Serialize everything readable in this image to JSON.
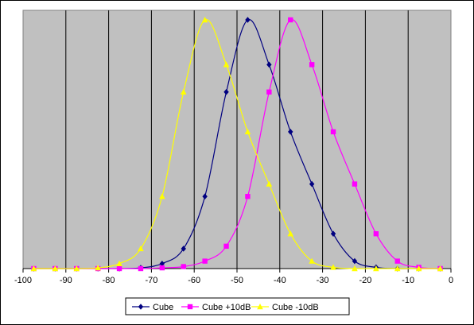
{
  "chart_data": {
    "type": "line",
    "title": "",
    "xlabel": "",
    "ylabel": "",
    "xlim": [
      -100,
      0
    ],
    "ylim": [
      0,
      1.0
    ],
    "x_ticks": [
      -100,
      -90,
      -80,
      -70,
      -60,
      -50,
      -40,
      -30,
      -20,
      -10,
      0
    ],
    "x_tick_labels": [
      "-100",
      "-90",
      "-80",
      "-70",
      "-60",
      "-50",
      "-40",
      "-30",
      "-20",
      "-10",
      "0"
    ],
    "grid": "vertical",
    "plot_background": "#c0c0c0",
    "legend": "bottom",
    "series": [
      {
        "name": "Cube",
        "color": "#000080",
        "marker": "diamond",
        "x": [
          -97.5,
          -92.5,
          -87.5,
          -82.5,
          -77.5,
          -72.5,
          -67.5,
          -62.5,
          -57.5,
          -52.5,
          -47.5,
          -42.5,
          -37.5,
          -32.5,
          -27.5,
          -22.5,
          -17.5,
          -12.5,
          -7.5,
          -2.5
        ],
        "y": [
          0,
          0,
          0,
          0,
          0,
          0.003,
          0.02,
          0.08,
          0.29,
          0.71,
          1.0,
          0.82,
          0.55,
          0.34,
          0.14,
          0.03,
          0.005,
          0,
          0,
          0
        ]
      },
      {
        "name": "Cube +10dB",
        "color": "#ff00ff",
        "marker": "square",
        "x": [
          -97.5,
          -92.5,
          -87.5,
          -82.5,
          -77.5,
          -72.5,
          -67.5,
          -62.5,
          -57.5,
          -52.5,
          -47.5,
          -42.5,
          -37.5,
          -32.5,
          -27.5,
          -22.5,
          -17.5,
          -12.5,
          -7.5,
          -2.5
        ],
        "y": [
          0,
          0,
          0,
          0,
          0,
          0,
          0.003,
          0.008,
          0.03,
          0.09,
          0.29,
          0.71,
          1.0,
          0.82,
          0.55,
          0.34,
          0.14,
          0.03,
          0.005,
          0
        ]
      },
      {
        "name": "Cube -10dB",
        "color": "#ffff00",
        "marker": "triangle",
        "x": [
          -97.5,
          -92.5,
          -87.5,
          -82.5,
          -77.5,
          -72.5,
          -67.5,
          -62.5,
          -57.5,
          -52.5,
          -47.5,
          -42.5,
          -37.5,
          -32.5,
          -27.5,
          -22.5,
          -17.5,
          -12.5,
          -7.5,
          -2.5
        ],
        "y": [
          0,
          0,
          0,
          0.003,
          0.02,
          0.08,
          0.29,
          0.71,
          1.0,
          0.82,
          0.55,
          0.34,
          0.14,
          0.03,
          0.005,
          0,
          0,
          0,
          0,
          0
        ]
      }
    ]
  }
}
